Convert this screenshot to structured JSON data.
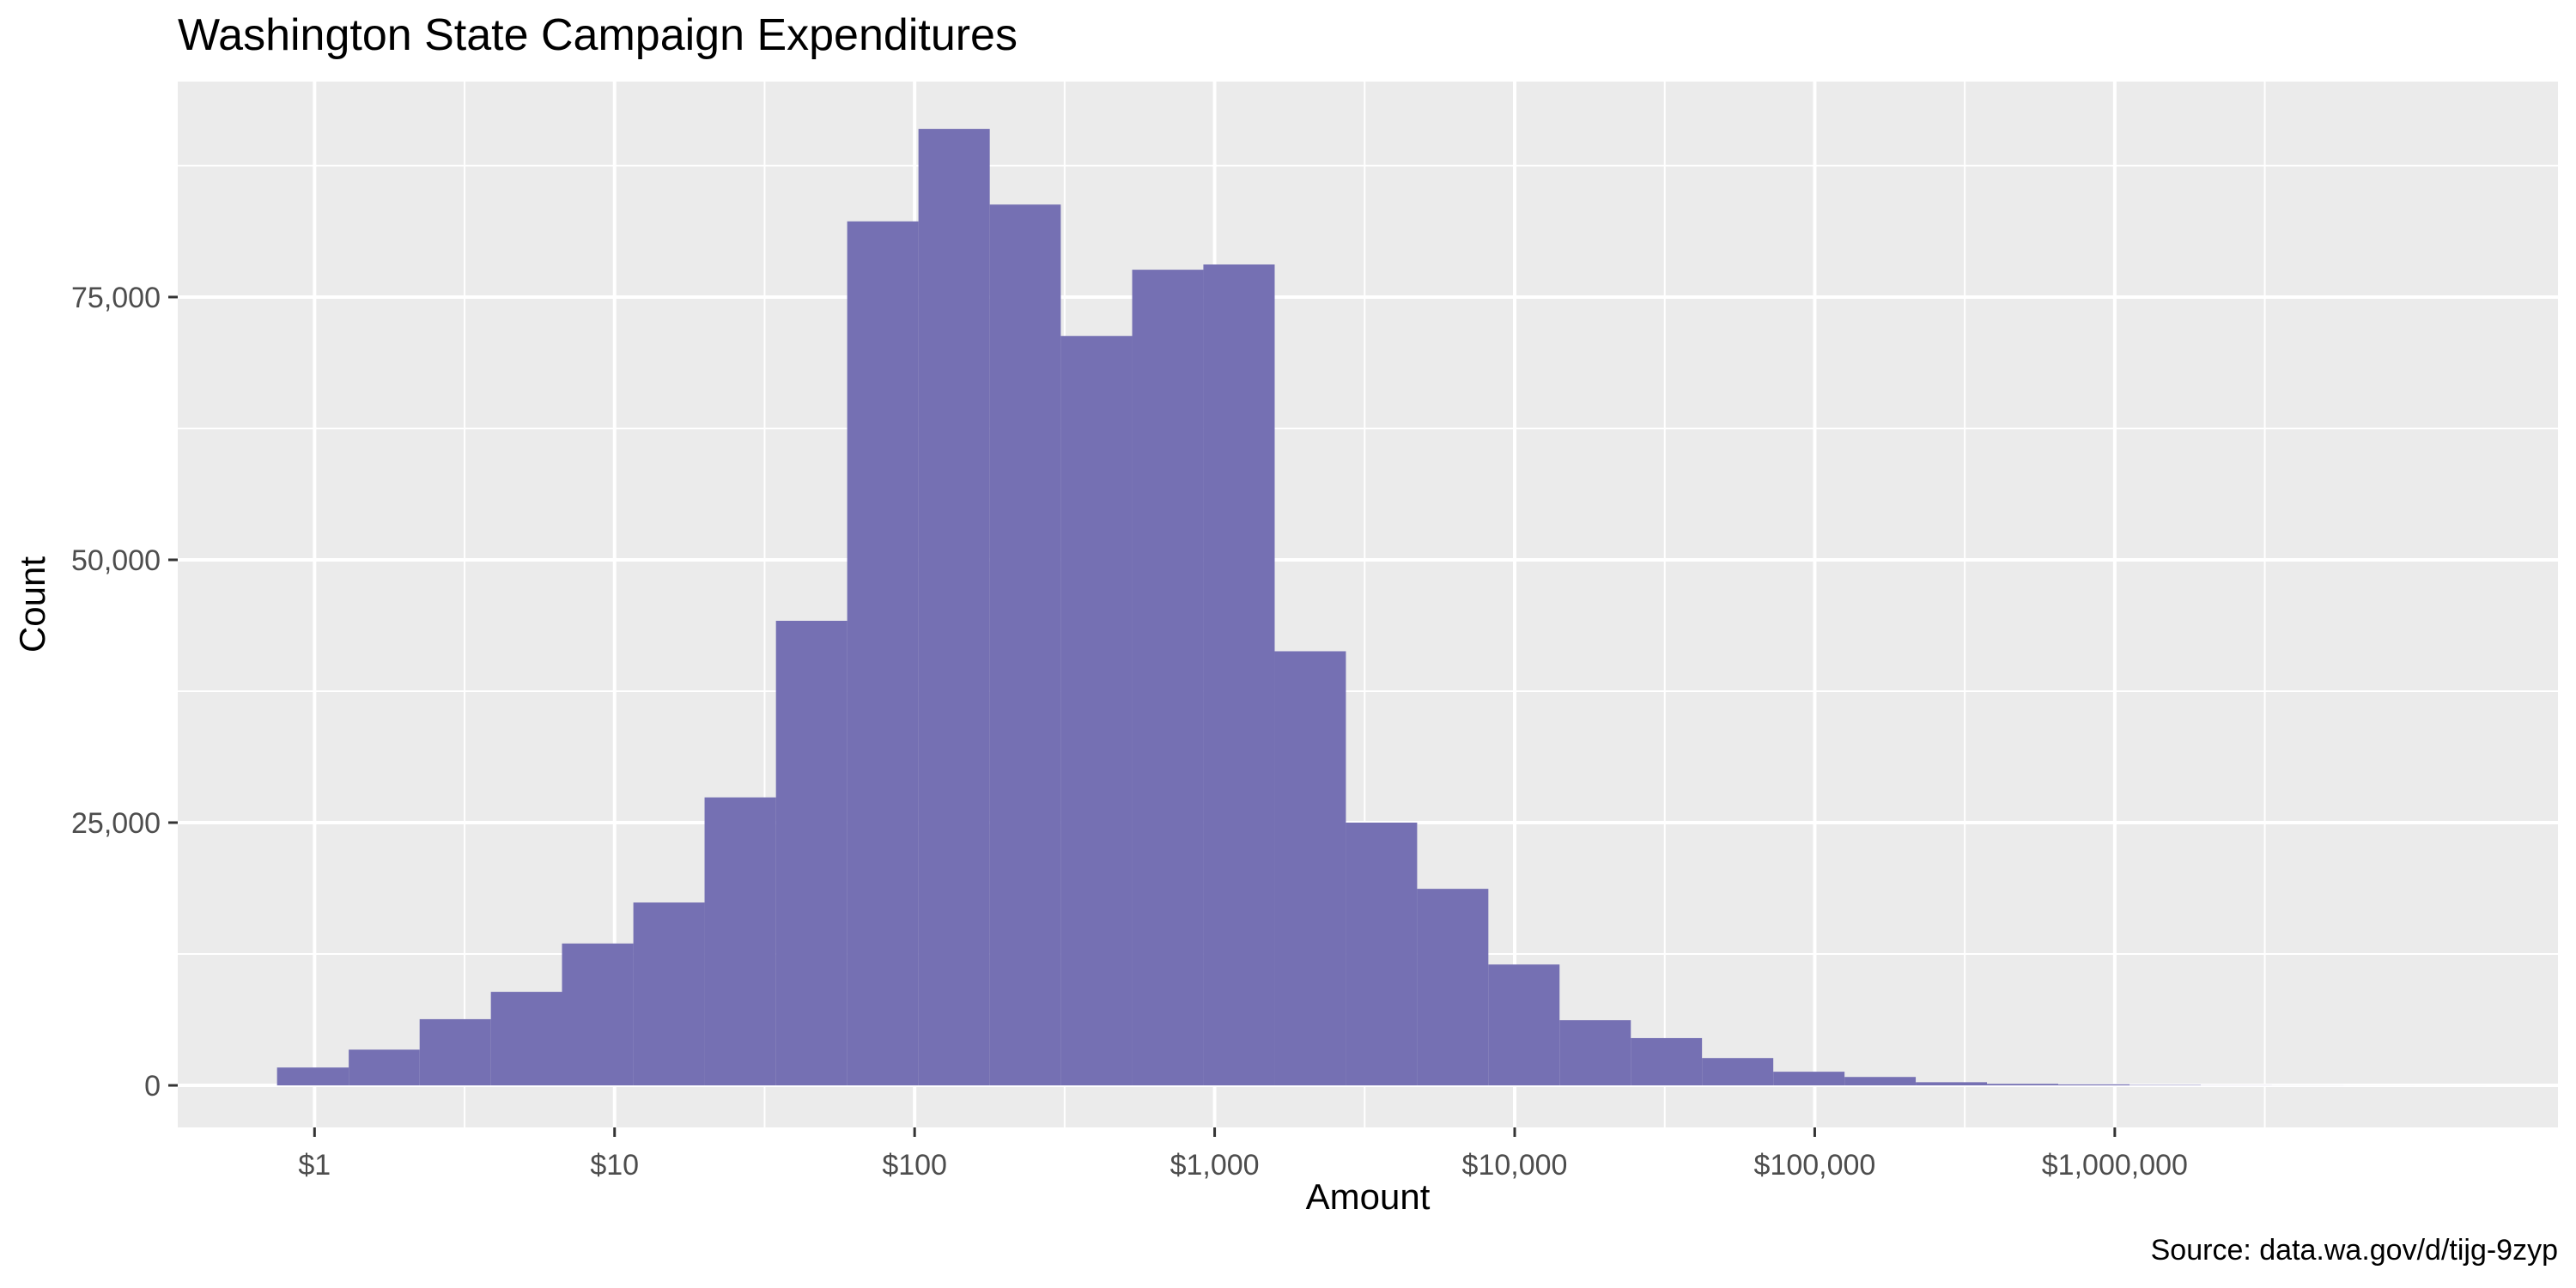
{
  "chart_data": {
    "type": "bar",
    "title": "Washington State Campaign Expenditures",
    "xlabel": "Amount",
    "ylabel": "Count",
    "caption": "Source: data.wa.gov/d/tijg-9zyp",
    "x_scale": "log10",
    "xlim": [
      0.35,
      30000000
    ],
    "ylim": [
      -4000,
      95500
    ],
    "grid": true,
    "legend": "none",
    "bar_color": "#7570b3",
    "panel_color": "#ebebeb",
    "x_ticks": [
      {
        "value": 1,
        "label": "$1"
      },
      {
        "value": 10,
        "label": "$10"
      },
      {
        "value": 100,
        "label": "$100"
      },
      {
        "value": 1000,
        "label": "$1,000"
      },
      {
        "value": 10000,
        "label": "$10,000"
      },
      {
        "value": 100000,
        "label": "$100,000"
      },
      {
        "value": 1000000,
        "label": "$1,000,000"
      }
    ],
    "y_ticks": [
      {
        "value": 0,
        "label": "0"
      },
      {
        "value": 25000,
        "label": "25,000"
      },
      {
        "value": 50000,
        "label": "50,000"
      },
      {
        "value": 75000,
        "label": "75,000"
      }
    ],
    "bins": [
      {
        "x0": 0.75,
        "x1": 1.3,
        "count": 1700
      },
      {
        "x0": 1.3,
        "x1": 2.24,
        "count": 3400
      },
      {
        "x0": 2.24,
        "x1": 3.87,
        "count": 6300
      },
      {
        "x0": 3.87,
        "x1": 6.68,
        "count": 8900
      },
      {
        "x0": 6.68,
        "x1": 11.55,
        "count": 13500
      },
      {
        "x0": 11.55,
        "x1": 19.95,
        "count": 17400
      },
      {
        "x0": 19.95,
        "x1": 34.5,
        "count": 27400
      },
      {
        "x0": 34.5,
        "x1": 59.6,
        "count": 44200
      },
      {
        "x0": 59.6,
        "x1": 103,
        "count": 82200
      },
      {
        "x0": 103,
        "x1": 178,
        "count": 91000
      },
      {
        "x0": 178,
        "x1": 307,
        "count": 83800
      },
      {
        "x0": 307,
        "x1": 531,
        "count": 71300
      },
      {
        "x0": 531,
        "x1": 917,
        "count": 77600
      },
      {
        "x0": 917,
        "x1": 1585,
        "count": 78100
      },
      {
        "x0": 1585,
        "x1": 2738,
        "count": 41300
      },
      {
        "x0": 2738,
        "x1": 4730,
        "count": 25000
      },
      {
        "x0": 4730,
        "x1": 8170,
        "count": 18700
      },
      {
        "x0": 8170,
        "x1": 14110,
        "count": 11500
      },
      {
        "x0": 14110,
        "x1": 24380,
        "count": 6200
      },
      {
        "x0": 24380,
        "x1": 42100,
        "count": 4500
      },
      {
        "x0": 42100,
        "x1": 72750,
        "count": 2600
      },
      {
        "x0": 72750,
        "x1": 125700,
        "count": 1300
      },
      {
        "x0": 125700,
        "x1": 217100,
        "count": 800
      },
      {
        "x0": 217100,
        "x1": 375000,
        "count": 300
      },
      {
        "x0": 375000,
        "x1": 648000,
        "count": 150
      },
      {
        "x0": 648000,
        "x1": 1120000,
        "count": 100
      },
      {
        "x0": 1120000,
        "x1": 1935000,
        "count": 40
      },
      {
        "x0": 1935000,
        "x1": 3342000,
        "count": 10
      },
      {
        "x0": 3342000,
        "x1": 5774000,
        "count": 5
      },
      {
        "x0": 5774000,
        "x1": 9975000,
        "count": 2
      },
      {
        "x0": 9975000,
        "x1": 17230000,
        "count": 1
      }
    ]
  }
}
